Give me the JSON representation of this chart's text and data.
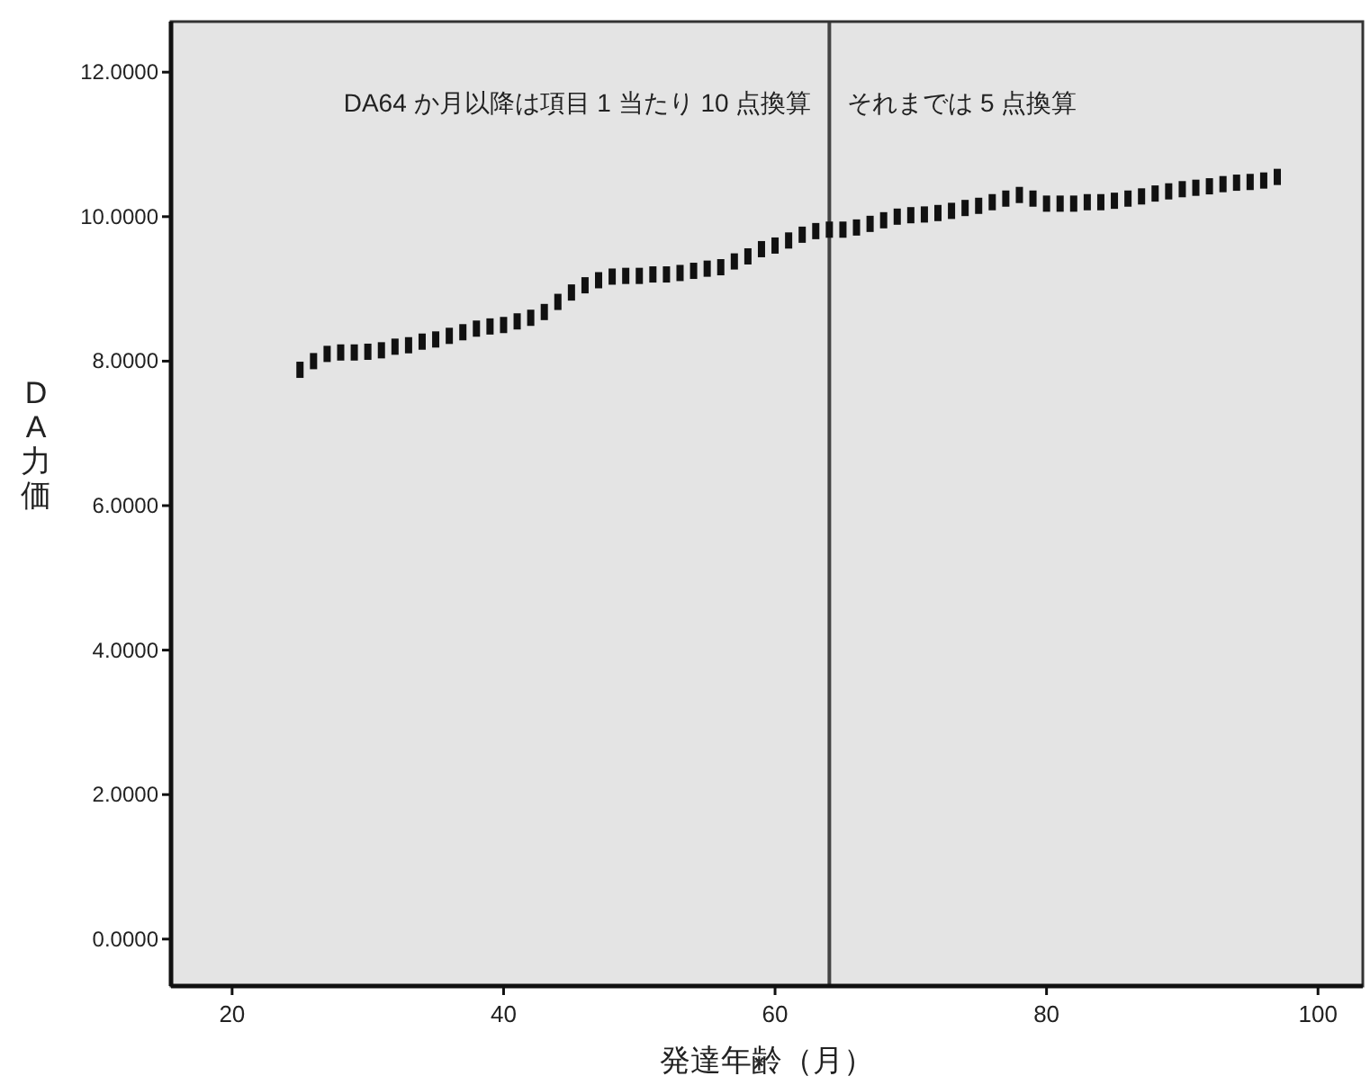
{
  "chart_data": {
    "type": "scatter",
    "marker": "square",
    "xlabel": "発達年齢（月）",
    "ylabel": "DA力価",
    "x": [
      25,
      26,
      27,
      28,
      29,
      30,
      31,
      32,
      33,
      34,
      35,
      36,
      37,
      38,
      39,
      40,
      41,
      42,
      43,
      44,
      45,
      46,
      47,
      48,
      49,
      50,
      51,
      52,
      53,
      54,
      55,
      56,
      57,
      58,
      59,
      60,
      61,
      62,
      63,
      64,
      65,
      66,
      67,
      68,
      69,
      70,
      71,
      72,
      73,
      74,
      75,
      76,
      77,
      78,
      79,
      80,
      81,
      82,
      83,
      84,
      85,
      86,
      87,
      88,
      89,
      90,
      91,
      92,
      93,
      94,
      95,
      96,
      97
    ],
    "series": [
      {
        "color": "#111111",
        "values": [
          7.88,
          8.0,
          8.1,
          8.12,
          8.12,
          8.13,
          8.15,
          8.2,
          8.22,
          8.27,
          8.3,
          8.35,
          8.4,
          8.45,
          8.48,
          8.5,
          8.55,
          8.6,
          8.68,
          8.82,
          8.95,
          9.05,
          9.12,
          9.17,
          9.18,
          9.18,
          9.2,
          9.2,
          9.22,
          9.25,
          9.28,
          9.3,
          9.38,
          9.45,
          9.55,
          9.6,
          9.67,
          9.75,
          9.8,
          9.82,
          9.82,
          9.85,
          9.9,
          9.95,
          10.0,
          10.02,
          10.03,
          10.05,
          10.08,
          10.12,
          10.15,
          10.2,
          10.25,
          10.3,
          10.25,
          10.18,
          10.18,
          10.18,
          10.2,
          10.2,
          10.22,
          10.25,
          10.28,
          10.32,
          10.35,
          10.38,
          10.4,
          10.42,
          10.45,
          10.47,
          10.48,
          10.5,
          10.55
        ]
      }
    ],
    "xlim": [
      15.5,
      103.3
    ],
    "xticks": [
      20,
      40,
      60,
      80,
      100
    ],
    "ylim": [
      -0.65,
      12.7
    ],
    "yticks": [
      {
        "value": 0,
        "label": "0.0000"
      },
      {
        "value": 2,
        "label": "2.0000"
      },
      {
        "value": 4,
        "label": "4.0000"
      },
      {
        "value": 6,
        "label": "6.0000"
      },
      {
        "value": 8,
        "label": "8.0000"
      },
      {
        "value": 10,
        "label": "10.0000"
      },
      {
        "value": 12,
        "label": "12.0000"
      }
    ],
    "ref_lines": [
      {
        "axis": "x",
        "value": 64,
        "color": "#444444",
        "line_style": "solid"
      }
    ],
    "annotations": [
      "DA64 か月以降は項目 1 当たり 10 点換算",
      "それまでは 5 点換算"
    ],
    "grid": false
  }
}
